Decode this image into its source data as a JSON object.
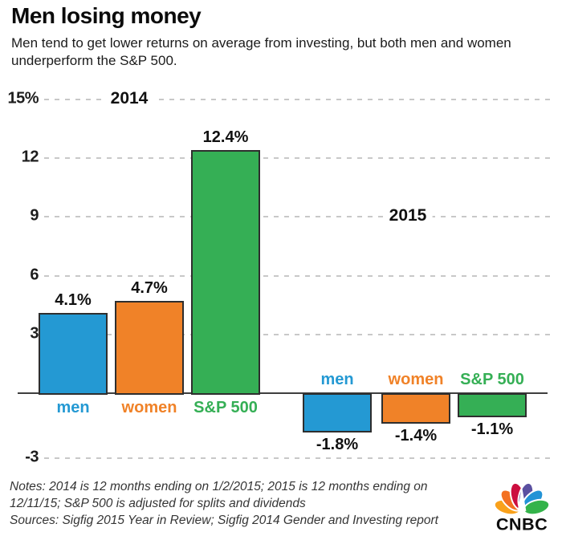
{
  "header": {
    "title": "Men losing money",
    "subtitle": "Men tend to get lower returns on average from investing, but both men and women underperform the S&P 500."
  },
  "footer": {
    "notes": "Notes: 2014 is 12 months ending on 1/2/2015; 2015 is 12 months ending on\n12/11/15; S&P 500 is adjusted for splits and dividends",
    "sources": "Sources: Sigfig 2015 Year in Review; Sigfig 2014 Gender and Investing report",
    "logo_text": "CNBC",
    "logo_feather_colors": [
      "#f9a11b",
      "#f37021",
      "#cc0e3f",
      "#5a50a0",
      "#2293d6",
      "#34b34a"
    ]
  },
  "chart_data": {
    "type": "bar",
    "unit": "%",
    "title": "Men losing money",
    "grid": "horizontal-dashed",
    "ylim": [
      -3.5,
      15.5
    ],
    "y_ticks": [
      {
        "value": 15,
        "label": "15%"
      },
      {
        "value": 12,
        "label": "12"
      },
      {
        "value": 9,
        "label": "9"
      },
      {
        "value": 6,
        "label": "6"
      },
      {
        "value": 3,
        "label": "3"
      },
      {
        "value": -3,
        "label": "-3"
      }
    ],
    "groups": [
      {
        "label": "2014",
        "bars": [
          {
            "category": "men",
            "value": 4.1,
            "value_label": "4.1%",
            "color": "#2499d3"
          },
          {
            "category": "women",
            "value": 4.7,
            "value_label": "4.7%",
            "color": "#f08228"
          },
          {
            "category": "S&P 500",
            "value": 12.4,
            "value_label": "12.4%",
            "color": "#35af55"
          }
        ]
      },
      {
        "label": "2015",
        "bars": [
          {
            "category": "men",
            "value": -1.8,
            "value_label": "-1.8%",
            "color": "#2499d3"
          },
          {
            "category": "women",
            "value": -1.4,
            "value_label": "-1.4%",
            "color": "#f08228"
          },
          {
            "category": "S&P 500",
            "value": -1.1,
            "value_label": "-1.1%",
            "color": "#35af55"
          }
        ]
      }
    ]
  }
}
